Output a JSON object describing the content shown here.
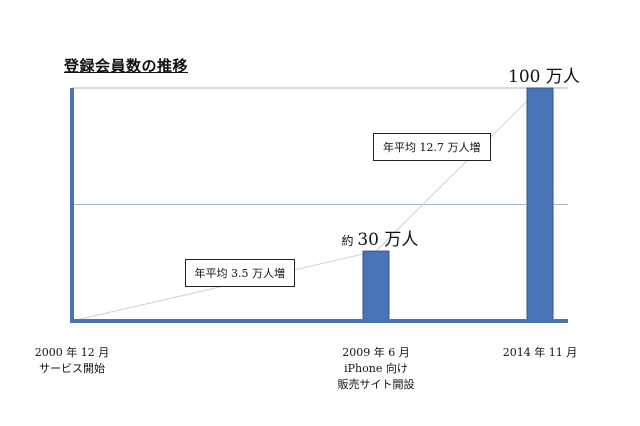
{
  "title": "登録会員数の推移",
  "chart_data": {
    "type": "bar",
    "categories": [
      "2000 年 12 月\nサービス開始",
      "2009 年 6 月\niPhone 向け\n販売サイト開設",
      "2014 年 11 月"
    ],
    "values": [
      0,
      30,
      100
    ],
    "unit": "万人",
    "ylim": [
      0,
      100
    ],
    "grid": true,
    "legend": "none",
    "colors": {
      "bar": "#4a74b6",
      "bar_edge": "#2f5490",
      "axis": "#4a74b6",
      "grid": "#9fb9c9"
    },
    "value_labels": [
      {
        "prefix": "",
        "value": "",
        "suffix": ""
      },
      {
        "prefix": "約",
        "value": "30",
        "suffix": "万人"
      },
      {
        "prefix": "",
        "value": "100",
        "suffix": "万人"
      }
    ],
    "annotations": [
      {
        "text": "年平均 3.5 万人増",
        "from_index": 0,
        "to_index": 1
      },
      {
        "text": "年平均 12.7 万人増",
        "from_index": 1,
        "to_index": 2
      }
    ]
  }
}
